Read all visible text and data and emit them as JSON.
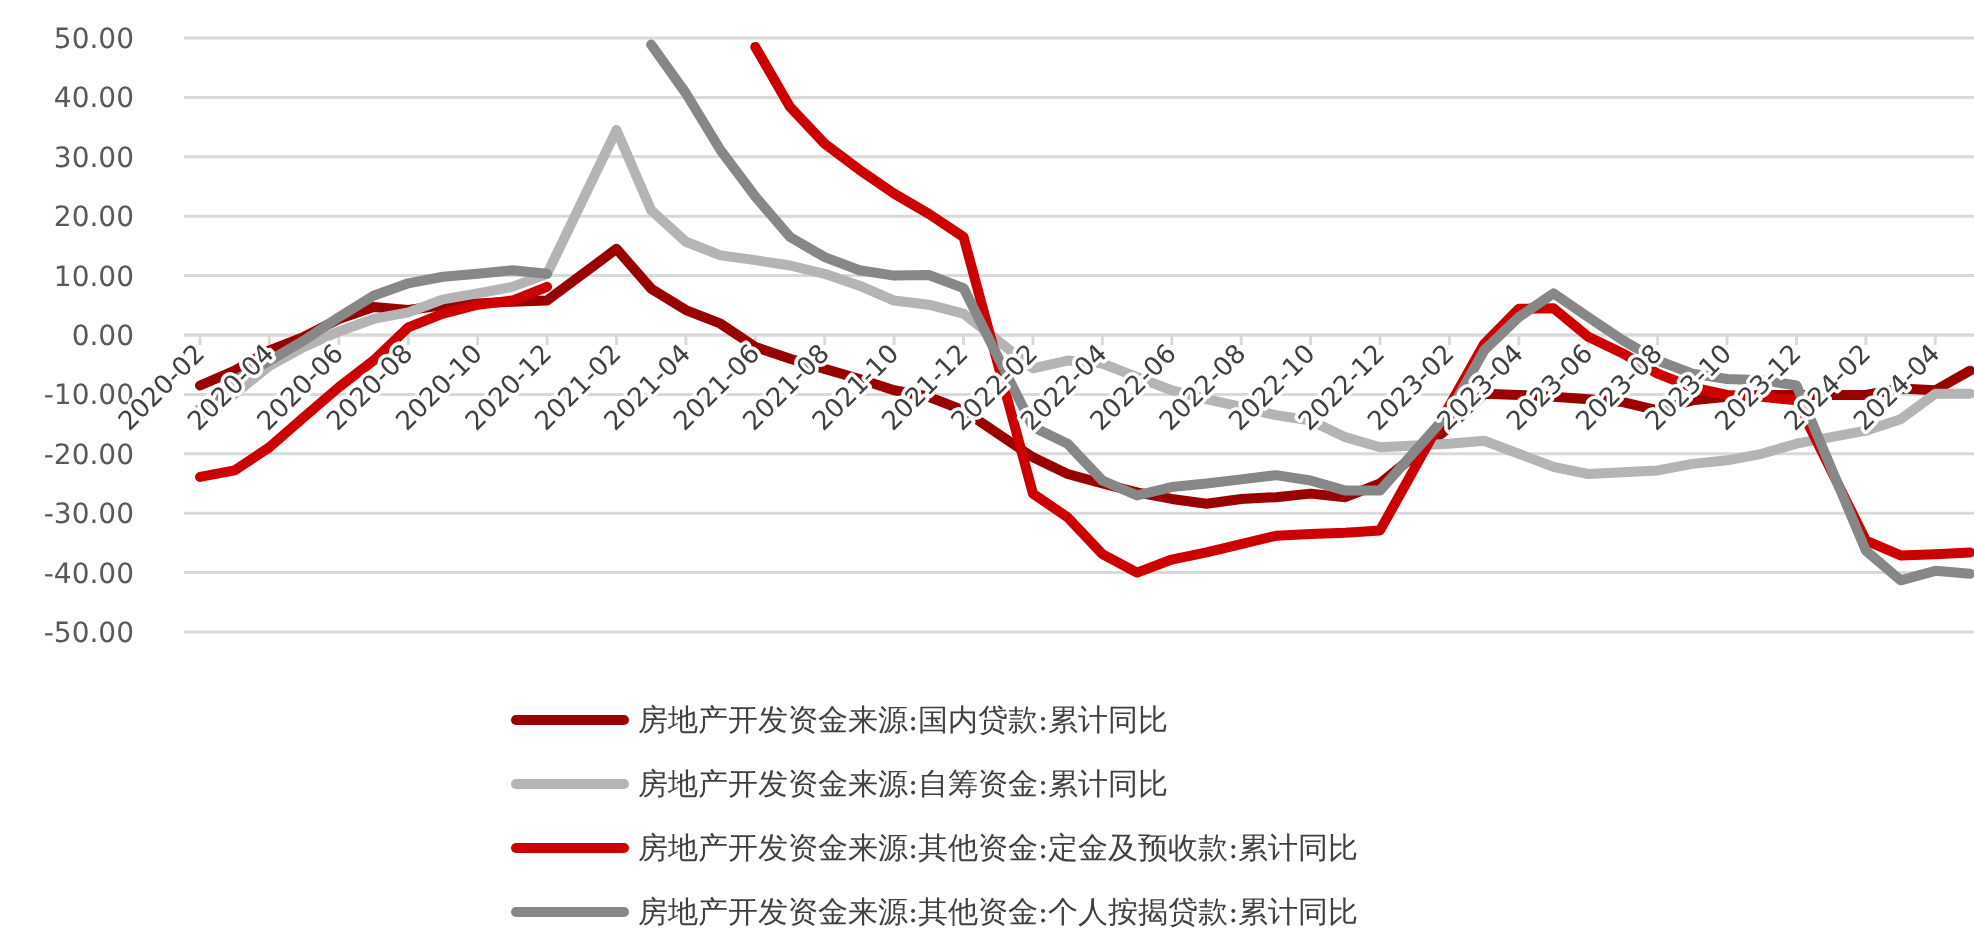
{
  "chart_data": {
    "type": "line",
    "x": [
      "2020-02",
      "2020-03",
      "2020-04",
      "2020-05",
      "2020-06",
      "2020-07",
      "2020-08",
      "2020-09",
      "2020-10",
      "2020-11",
      "2020-12",
      "2021-02",
      "2021-03",
      "2021-04",
      "2021-05",
      "2021-06",
      "2021-07",
      "2021-08",
      "2021-09",
      "2021-10",
      "2021-11",
      "2021-12",
      "2022-02",
      "2022-03",
      "2022-04",
      "2022-05",
      "2022-06",
      "2022-07",
      "2022-08",
      "2022-09",
      "2022-10",
      "2022-11",
      "2022-12",
      "2023-02",
      "2023-03",
      "2023-04",
      "2023-05",
      "2023-06",
      "2023-07",
      "2023-08",
      "2023-09",
      "2023-10",
      "2023-11",
      "2023-12",
      "2024-02",
      "2024-03",
      "2024-04",
      "2024-05"
    ],
    "series": [
      {
        "name": "房地产开发资金来源:国内贷款:累计同比",
        "color": "#990000",
        "values": [
          -8.5,
          -6,
          -2.6,
          -0.3,
          2.7,
          4.7,
          4.2,
          5,
          5.3,
          5.6,
          5.8,
          14.5,
          7.8,
          4.2,
          1.9,
          -2,
          -4,
          -5.7,
          -7.4,
          -9.3,
          -10.4,
          -12.7,
          -20.6,
          -23.4,
          -25,
          -26.5,
          -27.6,
          -28.4,
          -27.6,
          -27.3,
          -26.7,
          -27.3,
          -25,
          -15.5,
          -9.9,
          -10.1,
          -10.4,
          -10.8,
          -11.3,
          -12.7,
          -11,
          -10.4,
          -10.1,
          -10.1,
          -10.1,
          -9,
          -9.3,
          -6
        ]
      },
      {
        "name": "房地产开发资金来源:自筹资金:累计同比",
        "color": "#b4b4b4",
        "values": [
          -15,
          -9.9,
          -5.2,
          -2,
          0.6,
          2.7,
          3.8,
          6,
          7,
          8.1,
          10.3,
          34.5,
          21,
          15.7,
          13.4,
          12.6,
          11.7,
          10.3,
          8.3,
          5.8,
          5.1,
          3.6,
          -5.6,
          -4.3,
          -4.8,
          -7.1,
          -9.3,
          -10.8,
          -12.1,
          -13.5,
          -14.4,
          -17.2,
          -18.9,
          -18.3,
          -17.8,
          -20,
          -22.2,
          -23.4,
          -23.1,
          -22.8,
          -21.7,
          -21.1,
          -20,
          -18.3,
          -16.1,
          -14.2,
          -9.9,
          -9.9
        ]
      },
      {
        "name": "房地产开发资金来源:其他资金:定金及预收款:累计同比",
        "color": "#cc0000",
        "values": [
          -23.9,
          -22.8,
          -18.9,
          -13.8,
          -8.8,
          -4.3,
          1.3,
          3.6,
          5.1,
          5.8,
          8.1,
          null,
          null,
          null,
          null,
          48.5,
          38.4,
          32.2,
          27.8,
          23.8,
          20.4,
          16.5,
          -26.7,
          -30.7,
          -36.9,
          -40,
          -37.8,
          -36.6,
          -35.2,
          -33.8,
          -33.5,
          -33.3,
          -32.9,
          -11.9,
          -1.5,
          4.4,
          4.5,
          -0.3,
          -3.1,
          -6.5,
          -8.8,
          -10.1,
          -10.4,
          -11,
          -34.6,
          -37.1,
          -36.9,
          -36.6
        ]
      },
      {
        "name": "房地产开发资金来源:其他资金:个人按揭贷款:累计同比",
        "color": "#878787",
        "values": [
          -12.4,
          -7.6,
          -4.3,
          -0.9,
          3,
          6.6,
          8.7,
          9.8,
          10.3,
          10.9,
          10.3,
          null,
          48.9,
          40.7,
          31.1,
          23.3,
          16.5,
          13.1,
          10.9,
          10,
          10.1,
          7.9,
          -15.5,
          -18.3,
          -24.5,
          -27,
          -25.6,
          -25,
          -24.3,
          -23.6,
          -24.5,
          -26.2,
          -26.2,
          -13,
          -2.6,
          3,
          7,
          3,
          -0.9,
          -4.3,
          -6.5,
          -7.4,
          -7.6,
          -8.5,
          -36.3,
          -41.3,
          -39.7,
          -40.2
        ]
      }
    ],
    "xlim": [
      "2020-02",
      "2024-05"
    ],
    "xticks": [
      "2020-02",
      "2020-04",
      "2020-06",
      "2020-08",
      "2020-10",
      "2020-12",
      "2021-02",
      "2021-04",
      "2021-06",
      "2021-08",
      "2021-10",
      "2021-12",
      "2022-02",
      "2022-04",
      "2022-06",
      "2022-08",
      "2022-10",
      "2022-12",
      "2023-02",
      "2023-04",
      "2023-06",
      "2023-08",
      "2023-10",
      "2023-12",
      "2024-02",
      "2024-04"
    ],
    "ylim": [
      -50,
      50
    ],
    "yticks": [
      {
        "value": 50,
        "label": "50.00"
      },
      {
        "value": 40,
        "label": "40.00"
      },
      {
        "value": 30,
        "label": "30.00"
      },
      {
        "value": 20,
        "label": "20.00"
      },
      {
        "value": 10,
        "label": "10.00"
      },
      {
        "value": 0,
        "label": "0.00"
      },
      {
        "value": -10,
        "label": "-10.00"
      },
      {
        "value": -20,
        "label": "-20.00"
      },
      {
        "value": -30,
        "label": "-30.00"
      },
      {
        "value": -40,
        "label": "-40.00"
      },
      {
        "value": -50,
        "label": "-50.00"
      }
    ],
    "grid": "y",
    "legend": "bottom",
    "line_style": "solid",
    "marker": "none"
  }
}
